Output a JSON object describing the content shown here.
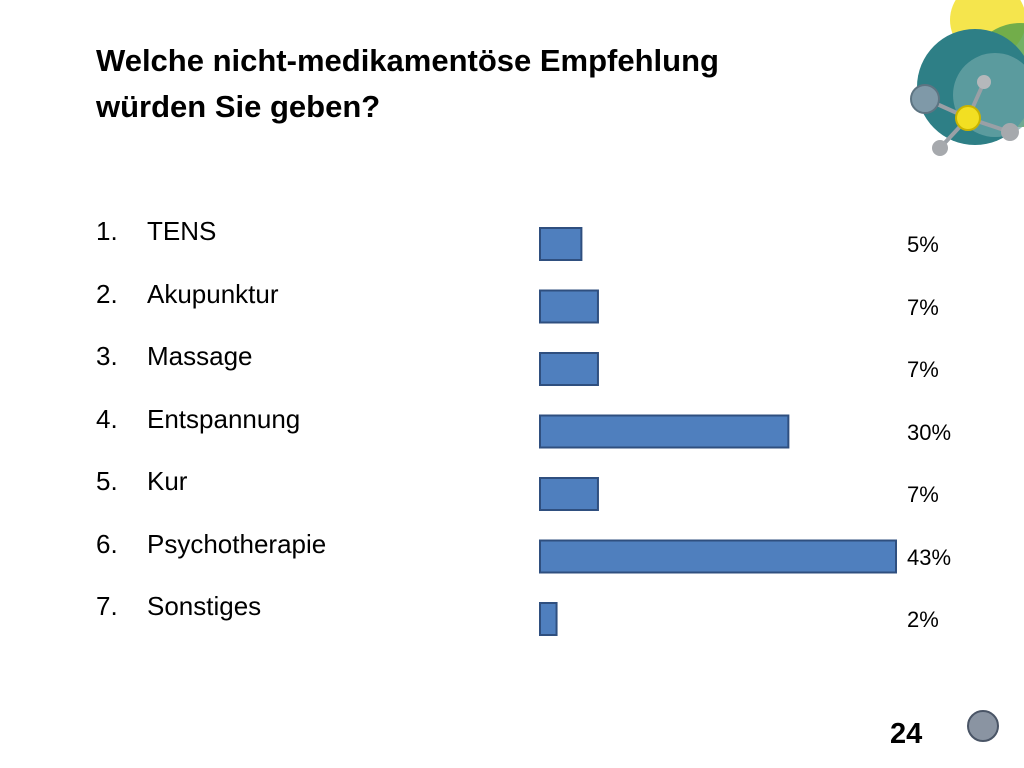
{
  "slide": {
    "title_line1": "Welche nicht-medikamentöse Empfehlung",
    "title_line2": "würden Sie geben?",
    "page_number": "24"
  },
  "colors": {
    "bar_fill": "#4f7fbe",
    "bar_stroke": "#2f4f7f"
  },
  "chart_data": {
    "type": "bar",
    "orientation": "horizontal",
    "categories": [
      "TENS",
      "Akupunktur",
      "Massage",
      "Entspannung",
      "Kur",
      "Psychotherapie",
      "Sonstiges"
    ],
    "numbers": [
      "1.",
      "2.",
      "3.",
      "4.",
      "5.",
      "6.",
      "7."
    ],
    "values": [
      5,
      7,
      7,
      30,
      7,
      43,
      2
    ],
    "value_labels": [
      "5%",
      "7%",
      "7%",
      "30%",
      "7%",
      "43%",
      "2%"
    ],
    "xlim": [
      0,
      43
    ],
    "grid": false
  }
}
